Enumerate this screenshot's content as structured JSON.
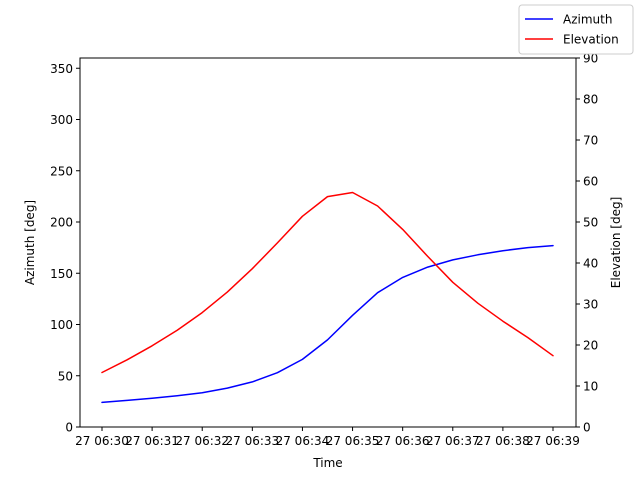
{
  "chart_data": {
    "type": "line",
    "xlabel": "Time",
    "ylabel_left": "Azimuth [deg]",
    "ylabel_right": "Elevation [deg]",
    "x_ticks": [
      "27 06:30",
      "27 06:31",
      "27 06:32",
      "27 06:33",
      "27 06:34",
      "27 06:35",
      "27 06:36",
      "27 06:37",
      "27 06:38",
      "27 06:39"
    ],
    "x_tick_labels": [
      "27 06:30",
      "27 06:31",
      "27 06:32",
      "27 06:33",
      "27 06:34",
      "27 06:35",
      "27 06:36",
      "27 06:37",
      "27 06:38",
      "27 06:39"
    ],
    "x_range": [
      "27 06:30",
      "27 06:39"
    ],
    "y_left": {
      "range": [
        0,
        360
      ],
      "ticks": [
        0,
        50,
        100,
        150,
        200,
        250,
        300,
        350
      ]
    },
    "y_right": {
      "range": [
        0,
        90
      ],
      "ticks": [
        0,
        10,
        20,
        30,
        40,
        50,
        60,
        70,
        80,
        90
      ]
    },
    "x": [
      "27 06:30:00",
      "27 06:30:30",
      "27 06:31:00",
      "27 06:31:30",
      "27 06:32:00",
      "27 06:32:30",
      "27 06:33:00",
      "27 06:33:30",
      "27 06:34:00",
      "27 06:34:30",
      "27 06:35:00",
      "27 06:35:30",
      "27 06:36:00",
      "27 06:36:30",
      "27 06:37:00",
      "27 06:37:30",
      "27 06:38:00",
      "27 06:38:30",
      "27 06:39:00"
    ],
    "series": [
      {
        "name": "Azimuth",
        "axis": "left",
        "color": "#0000ff",
        "values": [
          24,
          26,
          28,
          30.5,
          33.5,
          38,
          44,
          53,
          66,
          85,
          109,
          131,
          146,
          156,
          163,
          168,
          172,
          175,
          177
        ]
      },
      {
        "name": "Elevation",
        "axis": "right",
        "color": "#ff0000",
        "values": [
          13.3,
          16.4,
          19.8,
          23.6,
          27.9,
          32.9,
          38.6,
          44.9,
          51.4,
          56.2,
          57.2,
          53.9,
          48.2,
          41.6,
          35.3,
          30.2,
          25.8,
          21.8,
          17.4
        ]
      }
    ],
    "grid": false,
    "legend_position": "top-right"
  }
}
